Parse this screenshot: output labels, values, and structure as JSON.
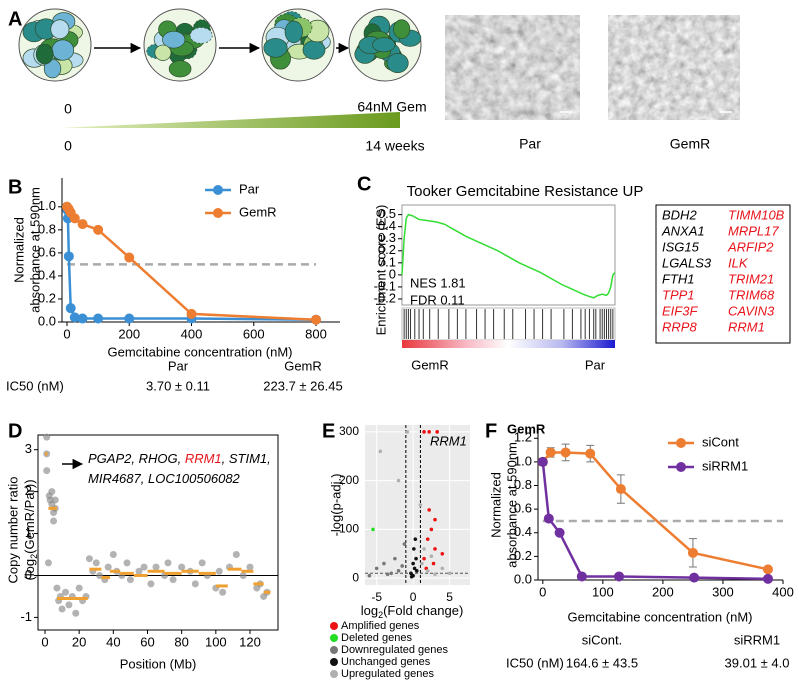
{
  "panel_labels": [
    "A",
    "B",
    "C",
    "D",
    "E",
    "F"
  ],
  "panel_a": {
    "start_dose": "0",
    "end_dose": "64nM Gem",
    "start_time": "0",
    "end_time": "14 weeks",
    "image_labels": [
      "Par",
      "GemR"
    ]
  },
  "chart_data": [
    {
      "type": "line",
      "x_label": "Gemcitabine concentration (nM)",
      "y_label": [
        "Normalized",
        "absorbance at 590nm"
      ],
      "xlim": [
        -16,
        877
      ],
      "xticks": [
        0,
        200,
        400,
        600,
        800
      ],
      "ylim": [
        0,
        1.25
      ],
      "yticks": [
        {
          "value": 0,
          "label": "0.0"
        },
        0.2,
        0.4,
        0.6,
        0.8,
        {
          "value": 1,
          "label": "1.0"
        }
      ],
      "reference_line": 0.5,
      "legend": "upper right",
      "series": [
        {
          "name": "Par",
          "color": "#3a8fd5",
          "x": [
            0,
            1.5,
            3,
            6,
            12,
            25,
            50,
            100,
            200,
            400,
            800
          ],
          "values": [
            1.0,
            0.97,
            0.9,
            0.57,
            0.12,
            0.04,
            0.03,
            0.03,
            0.03,
            0.03,
            0.02
          ]
        },
        {
          "name": "GemR",
          "color": "#ed7d31",
          "x": [
            0,
            6,
            12,
            25,
            50,
            100,
            200,
            400,
            800
          ],
          "values": [
            1.0,
            0.98,
            0.95,
            0.9,
            0.85,
            0.8,
            0.56,
            0.07,
            0.02
          ]
        }
      ],
      "ic50_table": {
        "row_label": "IC50 (nM)",
        "columns": [
          "Par",
          "GemR"
        ],
        "values": [
          "3.70 ± 0.11",
          "223.7 ± 26.45"
        ]
      }
    },
    {
      "type": "gsea",
      "title": "Tooker Gemcitabine Resistance UP",
      "y_label": "Enrichment score (ES)",
      "annotations": [
        "NES 1.81",
        "FDR 0.11"
      ],
      "x_end_labels": [
        "GemR",
        "Par"
      ],
      "xlim": [
        0,
        100
      ],
      "ylim": [
        -0.25,
        0.58
      ],
      "yticks": [
        0.5,
        0.4,
        0.3,
        0.2,
        0.1,
        0,
        -0.1,
        -0.2
      ],
      "color": "#33dd33",
      "x": [
        0,
        1,
        2,
        3,
        5,
        8,
        12,
        16,
        20,
        25,
        30,
        35,
        40,
        45,
        50,
        55,
        60,
        65,
        70,
        75,
        80,
        85,
        88,
        90,
        92,
        94,
        96,
        97,
        98,
        99,
        100
      ],
      "values": [
        0,
        0.3,
        0.47,
        0.5,
        0.49,
        0.46,
        0.45,
        0.44,
        0.42,
        0.37,
        0.32,
        0.28,
        0.24,
        0.2,
        0.15,
        0.1,
        0.06,
        0.02,
        -0.03,
        -0.08,
        -0.12,
        -0.16,
        -0.18,
        -0.19,
        -0.17,
        -0.16,
        -0.17,
        -0.15,
        -0.1,
        0.0,
        0.02
      ],
      "hits": [
        1,
        2,
        3,
        4,
        6,
        8,
        10,
        13,
        17,
        22,
        26,
        30,
        35,
        39,
        43,
        48,
        52,
        58,
        62,
        66,
        70,
        76,
        80,
        84,
        86,
        88,
        90,
        91,
        93,
        94,
        95,
        96,
        97,
        98,
        99
      ],
      "genes": [
        {
          "name": "BDH2",
          "color": "#000000"
        },
        {
          "name": "ANXA1",
          "color": "#000000"
        },
        {
          "name": "ISG15",
          "color": "#000000"
        },
        {
          "name": "LGALS3",
          "color": "#000000"
        },
        {
          "name": "FTH1",
          "color": "#000000"
        },
        {
          "name": "TPP1",
          "color": "#e8141b"
        },
        {
          "name": "EIF3F",
          "color": "#e8141b"
        },
        {
          "name": "RRP8",
          "color": "#e8141b"
        },
        {
          "name": "TIMM10B",
          "color": "#e8141b"
        },
        {
          "name": "MRPL17",
          "color": "#e8141b"
        },
        {
          "name": "ARFIP2",
          "color": "#e8141b"
        },
        {
          "name": "ILK",
          "color": "#e8141b"
        },
        {
          "name": "TRIM21",
          "color": "#e8141b"
        },
        {
          "name": "TRIM68",
          "color": "#e8141b"
        },
        {
          "name": "CAVIN3",
          "color": "#e8141b"
        },
        {
          "name": "RRM1",
          "color": "#e8141b"
        }
      ]
    },
    {
      "type": "scatter",
      "x_label": "Position (Mb)",
      "y_label": [
        "Copy number ratio",
        "(log",
        "2",
        "(GemR/Par))"
      ],
      "xlim": [
        -4.1,
        136.4
      ],
      "xticks": [
        0,
        20,
        40,
        60,
        80,
        100,
        120
      ],
      "ylim": [
        -1.3,
        3.35
      ],
      "yticks": [
        -1,
        0,
        1,
        2,
        3
      ],
      "color": "#8a8a8a",
      "segment_color": "#f0a030",
      "x": [
        1,
        1,
        1,
        2,
        2.5,
        3,
        4,
        4,
        5,
        5,
        6,
        6,
        7,
        8,
        9,
        10,
        12,
        14,
        16,
        18,
        20,
        22,
        24,
        26,
        28,
        30,
        32,
        35,
        37,
        40,
        42,
        45,
        48,
        50,
        55,
        58,
        62,
        65,
        70,
        72,
        75,
        80,
        85,
        88,
        92,
        95,
        100,
        102,
        104,
        108,
        112,
        116,
        120,
        124,
        126,
        128,
        130
      ],
      "values": [
        3.3,
        2.9,
        2.5,
        0.3,
        1.9,
        1.8,
        1.7,
        2.0,
        1.5,
        1.3,
        1.6,
        1.8,
        -0.3,
        -0.6,
        -0.5,
        -0.8,
        -0.4,
        -0.7,
        -0.5,
        -0.9,
        -0.3,
        -0.6,
        -0.5,
        0.4,
        0.1,
        0.3,
        0.0,
        -0.1,
        0.2,
        0.5,
        0.1,
        0.0,
        0.3,
        -0.1,
        0.1,
        0.2,
        -0.2,
        0.2,
        0.0,
        0.3,
        -0.1,
        0.2,
        0.1,
        -0.2,
        0.3,
        0.0,
        -0.3,
        0.1,
        -0.4,
        0.2,
        0.5,
        0.0,
        0.2,
        -0.3,
        -0.2,
        -0.5,
        -0.4
      ],
      "segments": [
        {
          "start": 0,
          "end": 1.5,
          "value": 2.9
        },
        {
          "start": 2,
          "end": 7,
          "value": 1.6
        },
        {
          "start": 7,
          "end": 25,
          "value": -0.55
        },
        {
          "start": 26,
          "end": 33,
          "value": 0.15
        },
        {
          "start": 33,
          "end": 38,
          "value": -0.05
        },
        {
          "start": 38,
          "end": 44,
          "value": 0.1
        },
        {
          "start": 44,
          "end": 52,
          "value": 0.05
        },
        {
          "start": 52,
          "end": 60,
          "value": 0.0
        },
        {
          "start": 60,
          "end": 70,
          "value": 0.1
        },
        {
          "start": 70,
          "end": 80,
          "value": 0.05
        },
        {
          "start": 80,
          "end": 90,
          "value": 0.1
        },
        {
          "start": 90,
          "end": 100,
          "value": 0.05
        },
        {
          "start": 100,
          "end": 107,
          "value": -0.25
        },
        {
          "start": 107,
          "end": 115,
          "value": 0.15
        },
        {
          "start": 115,
          "end": 122,
          "value": 0.1
        },
        {
          "start": 122,
          "end": 128,
          "value": -0.2
        },
        {
          "start": 128,
          "end": 132,
          "value": -0.4
        }
      ],
      "annotation": [
        [
          {
            "text": "PGAP2, RHOG, ",
            "color": "#000000"
          },
          {
            "text": "RRM1",
            "color": "#e8141b"
          },
          {
            "text": ", STIM1,",
            "color": "#000000"
          }
        ],
        [
          {
            "text": "MIR4687, LOC100506082",
            "color": "#000000"
          }
        ]
      ]
    },
    {
      "type": "volcano",
      "x_label": [
        "log",
        "2",
        "(Fold change)"
      ],
      "y_label": "-log(p-adj.)",
      "label": "RRM1",
      "xlim": [
        -6.6,
        7.8
      ],
      "xticks": [
        -5,
        0,
        5
      ],
      "ylim": [
        -14,
        314
      ],
      "yticks": [
        0,
        100,
        200,
        300
      ],
      "x_thresholds": [
        -1,
        1
      ],
      "y_threshold": 10,
      "legend": [
        {
          "name": "Amplified genes",
          "color": "#ee1111"
        },
        {
          "name": "Deleted genes",
          "color": "#22dd22"
        },
        {
          "name": "Downregulated genes",
          "color": "#777777"
        },
        {
          "name": "Unchanged genes",
          "color": "#111111"
        },
        {
          "name": "Upregulated genes",
          "color": "#b0b0b0"
        }
      ],
      "x": [
        1.5,
        2.2,
        3.3,
        2.5,
        2,
        3,
        1.5,
        2.8,
        1.8,
        4,
        2.2,
        3,
        -5.5,
        -5,
        -3,
        -4,
        -2,
        -6,
        -1.5,
        -3.5,
        -2.5,
        -1.2,
        0,
        0.2,
        -0.3,
        0.4,
        0.1,
        -0.2,
        0.5,
        0.3,
        0,
        -0.8,
        -4.5,
        -2,
        1,
        1.2,
        2,
        3,
        4,
        5,
        1.5,
        2.5
      ],
      "values": [
        300,
        300,
        300,
        100,
        80,
        60,
        40,
        30,
        20,
        50,
        140,
        120,
        100,
        20,
        10,
        30,
        15,
        5,
        25,
        8,
        40,
        70,
        5,
        20,
        10,
        40,
        60,
        3,
        15,
        80,
        30,
        300,
        260,
        200,
        150,
        30,
        15,
        8,
        20,
        10,
        60,
        45
      ],
      "groups": [
        0,
        0,
        0,
        0,
        0,
        0,
        0,
        0,
        0,
        0,
        0,
        0,
        1,
        2,
        2,
        2,
        2,
        2,
        2,
        2,
        2,
        2,
        3,
        3,
        3,
        3,
        3,
        3,
        3,
        3,
        3,
        4,
        4,
        4,
        4,
        4,
        4,
        4,
        4,
        4,
        4,
        4
      ]
    },
    {
      "type": "line",
      "title": "GemR",
      "x_label": "Gemcitabine concentration (nM)",
      "y_label": [
        "Normalized",
        "absorbance at 590nm"
      ],
      "xlim": [
        -8,
        400
      ],
      "xticks": [
        0,
        100,
        200,
        300,
        400
      ],
      "ylim": [
        0,
        1.27
      ],
      "yticks": [
        {
          "value": 0,
          "label": "0.0"
        },
        0.2,
        0.4,
        0.6,
        0.8,
        {
          "value": 1,
          "label": "1.0"
        },
        1.2
      ],
      "reference_line": 0.5,
      "legend": "upper right",
      "series": [
        {
          "name": "siCont",
          "color": "#ed7d31",
          "x": [
            0,
            13,
            38,
            79,
            130,
            250,
            375
          ],
          "values": [
            1.0,
            1.08,
            1.08,
            1.07,
            0.77,
            0.23,
            0.09
          ],
          "errors": [
            0.03,
            0.04,
            0.07,
            0.07,
            0.12,
            0.12,
            0.02
          ]
        },
        {
          "name": "siRRM1",
          "color": "#7030a0",
          "x": [
            0,
            10,
            28,
            65,
            127,
            252,
            375
          ],
          "values": [
            1.0,
            0.52,
            0.4,
            0.03,
            0.03,
            0.02,
            0.01
          ]
        }
      ],
      "ic50_table": {
        "row_label": "IC50 (nM)",
        "columns": [
          "siCont.",
          "siRRM1"
        ],
        "values": [
          "164.6 ± 43.5",
          "39.01 ± 4.0"
        ]
      }
    }
  ]
}
